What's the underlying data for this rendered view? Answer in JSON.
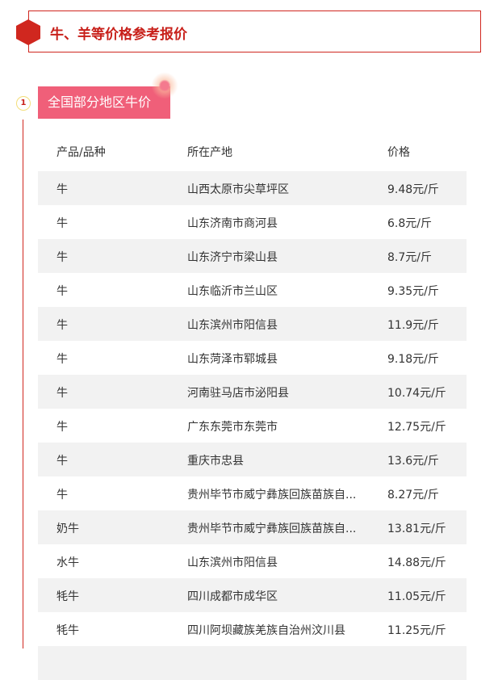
{
  "title": "牛、羊等价格参考报价",
  "section": {
    "number": "1",
    "label": "全国部分地区牛价"
  },
  "table": {
    "headers": [
      "产品/品种",
      "所在产地",
      "价格"
    ],
    "rows": [
      [
        "牛",
        "山西太原市尖草坪区",
        "9.48元/斤"
      ],
      [
        "牛",
        "山东济南市商河县",
        "6.8元/斤"
      ],
      [
        "牛",
        "山东济宁市梁山县",
        "8.7元/斤"
      ],
      [
        "牛",
        "山东临沂市兰山区",
        "9.35元/斤"
      ],
      [
        "牛",
        "山东滨州市阳信县",
        "11.9元/斤"
      ],
      [
        "牛",
        "山东菏泽市郓城县",
        "9.18元/斤"
      ],
      [
        "牛",
        "河南驻马店市泌阳县",
        "10.74元/斤"
      ],
      [
        "牛",
        "广东东莞市东莞市",
        "12.75元/斤"
      ],
      [
        "牛",
        "重庆市忠县",
        "13.6元/斤"
      ],
      [
        "牛",
        "贵州毕节市威宁彝族回族苗族自...",
        "8.27元/斤"
      ],
      [
        "奶牛",
        "贵州毕节市威宁彝族回族苗族自...",
        "13.81元/斤"
      ],
      [
        "水牛",
        "山东滨州市阳信县",
        "14.88元/斤"
      ],
      [
        "牦牛",
        "四川成都市成华区",
        "11.05元/斤"
      ],
      [
        "牦牛",
        "四川阿坝藏族羌族自治州汶川县",
        "11.25元/斤"
      ]
    ]
  }
}
